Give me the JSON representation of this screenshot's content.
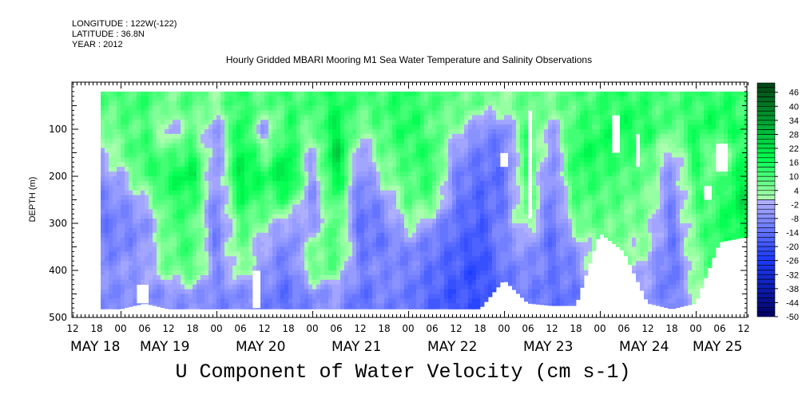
{
  "header": {
    "longitude": "LONGITUDE : 122W(-122)",
    "latitude": "LATITUDE : 36.8N",
    "year": "YEAR : 2012"
  },
  "chart_data": {
    "type": "heatmap",
    "title": "Hourly Gridded MBARI Mooring M1 Sea Water Temperature and Salinity Observations",
    "variable_label": "U Component of Water Velocity (cm s-1)",
    "ylabel": "DEPTH (m)",
    "ylim": [
      0,
      500
    ],
    "y_inverted": true,
    "y_ticks": [
      100,
      200,
      300,
      400,
      500
    ],
    "x_units": "hours since MAY 18 12:00",
    "xlim": [
      0,
      169
    ],
    "x_tick_labels": [
      "12",
      "18",
      "00",
      "06",
      "12",
      "18",
      "00",
      "06",
      "12",
      "18",
      "00",
      "06",
      "12",
      "18",
      "00",
      "06",
      "12",
      "18",
      "00",
      "06",
      "12",
      "18",
      "00",
      "06",
      "12",
      "18",
      "00",
      "06",
      "12"
    ],
    "x_day_labels": [
      "MAY 18",
      "MAY 19",
      "MAY 20",
      "MAY 21",
      "MAY 22",
      "MAY 23",
      "MAY 24",
      "MAY 25"
    ],
    "data_x_range": [
      7,
      168.4
    ],
    "data_depth_top": 20,
    "grid_depths": [
      50,
      100,
      150,
      200,
      250,
      300,
      350,
      400,
      450
    ],
    "grid_hours": [
      6,
      12,
      18,
      24,
      30,
      36,
      42,
      48,
      54,
      60,
      66,
      72,
      78,
      84,
      90,
      96,
      102,
      108,
      114,
      120,
      126,
      132,
      138,
      144,
      150,
      156,
      162,
      168
    ],
    "values": [
      [
        8,
        2,
        -4,
        -8,
        -10,
        -12,
        -10,
        -8,
        -10
      ],
      [
        10,
        8,
        6,
        -2,
        -8,
        -10,
        -10,
        -6,
        -8
      ],
      [
        12,
        10,
        14,
        10,
        0,
        -8,
        -6,
        -4,
        -8
      ],
      [
        6,
        -4,
        8,
        16,
        12,
        10,
        8,
        6,
        -8
      ],
      [
        10,
        6,
        14,
        20,
        14,
        10,
        12,
        10,
        -6
      ],
      [
        4,
        -6,
        -8,
        -8,
        -10,
        -12,
        -10,
        -8,
        -10
      ],
      [
        14,
        18,
        20,
        22,
        16,
        10,
        8,
        4,
        -8
      ],
      [
        8,
        -6,
        6,
        14,
        10,
        4,
        -4,
        -6,
        -10
      ],
      [
        12,
        14,
        18,
        24,
        12,
        -4,
        -10,
        -12,
        -14
      ],
      [
        10,
        6,
        -4,
        -6,
        -8,
        -6,
        4,
        8,
        -8
      ],
      [
        16,
        20,
        26,
        22,
        14,
        10,
        12,
        6,
        -6
      ],
      [
        10,
        4,
        -6,
        -10,
        -12,
        -14,
        -12,
        -10,
        -14
      ],
      [
        12,
        10,
        8,
        4,
        -6,
        -10,
        -12,
        -8,
        -10
      ],
      [
        14,
        16,
        12,
        10,
        8,
        4,
        -8,
        -10,
        -12
      ],
      [
        10,
        8,
        14,
        12,
        10,
        -6,
        -12,
        -14,
        -16
      ],
      [
        8,
        4,
        -6,
        -10,
        -12,
        -14,
        -16,
        -18,
        -20
      ],
      [
        6,
        -8,
        -12,
        -14,
        -16,
        -18,
        -20,
        -22,
        -20
      ],
      [
        4,
        -10,
        -12,
        -14,
        -12,
        -10,
        -8,
        -12,
        -14
      ],
      [
        8,
        12,
        14,
        12,
        10,
        6,
        -6,
        -8,
        -10
      ],
      [
        6,
        -4,
        -8,
        -10,
        -12,
        -14,
        -14,
        -12,
        -14
      ],
      [
        10,
        12,
        16,
        14,
        10,
        6,
        -6,
        -10,
        -12
      ],
      [
        12,
        14,
        16,
        12,
        10,
        8,
        8,
        6,
        4
      ],
      [
        14,
        16,
        12,
        10,
        8,
        6,
        4,
        4,
        2
      ],
      [
        12,
        14,
        10,
        8,
        6,
        4,
        2,
        -4,
        -6
      ],
      [
        10,
        8,
        -4,
        -8,
        -10,
        -12,
        -12,
        -14,
        -12
      ],
      [
        12,
        14,
        16,
        12,
        10,
        8,
        6,
        4,
        2
      ],
      [
        14,
        16,
        -4,
        8,
        12,
        14,
        16,
        10,
        8
      ],
      [
        12,
        14,
        16,
        20,
        22,
        18,
        14,
        10,
        8
      ]
    ],
    "max_depth": [
      482,
      482,
      470,
      482,
      482,
      482,
      482,
      482,
      482,
      482,
      482,
      482,
      482,
      482,
      482,
      482,
      482,
      420,
      470,
      475,
      475,
      320,
      360,
      470,
      482,
      470,
      340,
      330
    ],
    "missing_regions": [
      {
        "hours": [
          16,
          19
        ],
        "depth": [
          435,
          470
        ]
      },
      {
        "hours": [
          45,
          46.5
        ],
        "depth": [
          405,
          482
        ]
      },
      {
        "hours": [
          107.5,
          109
        ],
        "depth": [
          150,
          178
        ]
      },
      {
        "hours": [
          113.8,
          115.4
        ],
        "depth": [
          60,
          285
        ]
      },
      {
        "hours": [
          134.8,
          136.8
        ],
        "depth": [
          72,
          148
        ]
      },
      {
        "hours": [
          140.8,
          142.2
        ],
        "depth": [
          115,
          182
        ]
      },
      {
        "hours": [
          157.8,
          159.8
        ],
        "depth": [
          218,
          250
        ]
      },
      {
        "hours": [
          161,
          164
        ],
        "depth": [
          133,
          192
        ]
      }
    ],
    "colorbar": {
      "min": -50,
      "max": 50,
      "step": 2,
      "labels": [
        "46",
        "40",
        "34",
        "28",
        "22",
        "16",
        "10",
        "4",
        "-2",
        "-8",
        "-14",
        "-20",
        "-26",
        "-32",
        "-38",
        "-44",
        "-50"
      ],
      "label_values": [
        46,
        40,
        34,
        28,
        22,
        16,
        10,
        4,
        -2,
        -8,
        -14,
        -20,
        -26,
        -32,
        -38,
        -44,
        -50
      ]
    }
  }
}
